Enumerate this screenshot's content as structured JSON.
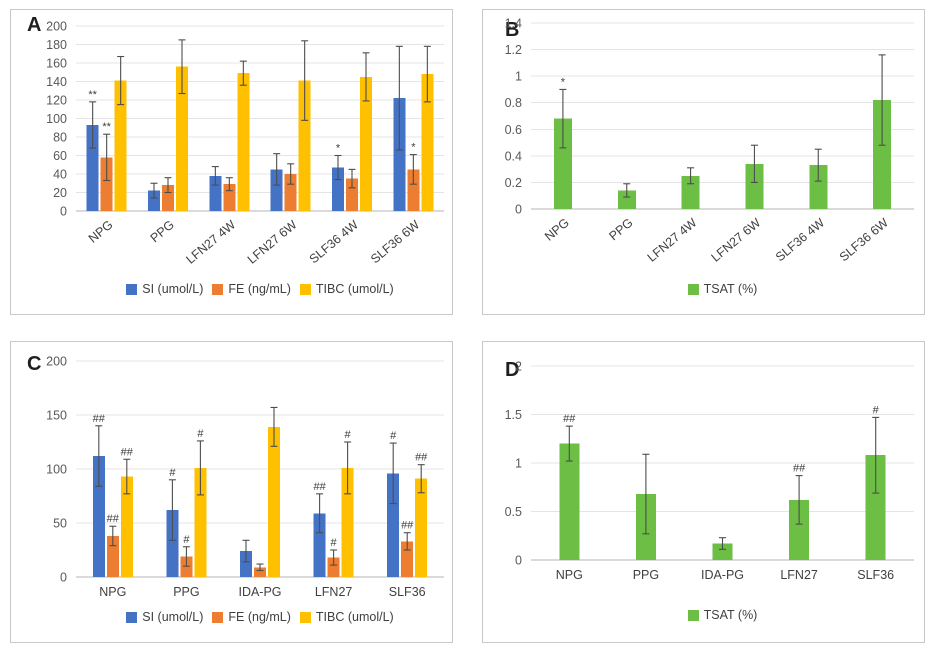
{
  "figure": {
    "background": "#ffffff",
    "panel_border_color": "#c9c9c9",
    "gridline_color": "#e4e4e4",
    "axis_line_color": "#b5b5b5",
    "error_bar_color": "#4d4d4d"
  },
  "chart_data": [
    {
      "panel_label": "A",
      "type": "bar",
      "grid": true,
      "legend_position": "bottom",
      "x_labels_rotated": true,
      "ylim": [
        0,
        200
      ],
      "ytick_step": 20,
      "xlabel": "",
      "ylabel": "",
      "categories": [
        "NPG",
        "PPG",
        "LFN27 4W",
        "LFN27 6W",
        "SLF36 4W",
        "SLF36 6W"
      ],
      "series": [
        {
          "name": "SI (umol/L)",
          "color": "#4472C4",
          "values": [
            93,
            22,
            38,
            45,
            47,
            122
          ],
          "errors": [
            25,
            8,
            10,
            17,
            13,
            56
          ],
          "annotations": [
            "**",
            "",
            "",
            "",
            "*",
            ""
          ]
        },
        {
          "name": "FE (ng/mL)",
          "color": "#ED7D31",
          "values": [
            58,
            28,
            29,
            40,
            35,
            45
          ],
          "errors": [
            25,
            8,
            7,
            11,
            10,
            16
          ],
          "annotations": [
            "**",
            "",
            "",
            "",
            "",
            "*"
          ]
        },
        {
          "name": "TIBC (umol/L)",
          "color": "#FFC000",
          "values": [
            141,
            156,
            149,
            141,
            145,
            148
          ],
          "errors": [
            26,
            29,
            13,
            43,
            26,
            30
          ],
          "annotations": [
            "",
            "",
            "",
            "",
            "",
            ""
          ]
        }
      ]
    },
    {
      "panel_label": "B",
      "type": "bar",
      "grid": true,
      "legend_position": "bottom",
      "x_labels_rotated": true,
      "ylim": [
        0,
        1.4
      ],
      "ytick_step": 0.2,
      "xlabel": "",
      "ylabel": "",
      "categories": [
        "NPG",
        "PPG",
        "LFN27 4W",
        "LFN27 6W",
        "SLF36 4W",
        "SLF36 6W"
      ],
      "series": [
        {
          "name": "TSAT (%)",
          "color": "#6CBE45",
          "values": [
            0.68,
            0.14,
            0.25,
            0.34,
            0.33,
            0.82
          ],
          "errors": [
            0.22,
            0.05,
            0.06,
            0.14,
            0.12,
            0.34
          ],
          "annotations": [
            "*",
            "",
            "",
            "",
            "",
            ""
          ]
        }
      ]
    },
    {
      "panel_label": "C",
      "type": "bar",
      "grid": true,
      "legend_position": "bottom",
      "x_labels_rotated": false,
      "ylim": [
        0,
        200
      ],
      "ytick_step": 50,
      "xlabel": "",
      "ylabel": "",
      "categories": [
        "NPG",
        "PPG",
        "IDA-PG",
        "LFN27",
        "SLF36"
      ],
      "series": [
        {
          "name": "SI (umol/L)",
          "color": "#4472C4",
          "values": [
            112,
            62,
            24,
            59,
            96
          ],
          "errors": [
            28,
            28,
            10,
            18,
            28
          ],
          "annotations": [
            "##",
            "#",
            "",
            "##",
            "#"
          ]
        },
        {
          "name": "FE (ng/mL)",
          "color": "#ED7D31",
          "values": [
            38,
            19,
            9,
            18,
            33
          ],
          "errors": [
            9,
            9,
            3,
            7,
            8
          ],
          "annotations": [
            "##",
            "#",
            "",
            "#",
            "##"
          ]
        },
        {
          "name": "TIBC (umol/L)",
          "color": "#FFC000",
          "values": [
            93,
            101,
            139,
            101,
            91
          ],
          "errors": [
            16,
            25,
            18,
            24,
            13
          ],
          "annotations": [
            "##",
            "#",
            "",
            "#",
            "##"
          ]
        }
      ]
    },
    {
      "panel_label": "D",
      "type": "bar",
      "grid": true,
      "legend_position": "bottom",
      "x_labels_rotated": false,
      "ylim": [
        0,
        2
      ],
      "ytick_step": 0.5,
      "xlabel": "",
      "ylabel": "",
      "categories": [
        "NPG",
        "PPG",
        "IDA-PG",
        "LFN27",
        "SLF36"
      ],
      "series": [
        {
          "name": "TSAT (%)",
          "color": "#6CBE45",
          "values": [
            1.2,
            0.68,
            0.17,
            0.62,
            1.08
          ],
          "errors": [
            0.18,
            0.41,
            0.06,
            0.25,
            0.39
          ],
          "annotations": [
            "##",
            "",
            "",
            "##",
            "#"
          ]
        }
      ]
    }
  ]
}
